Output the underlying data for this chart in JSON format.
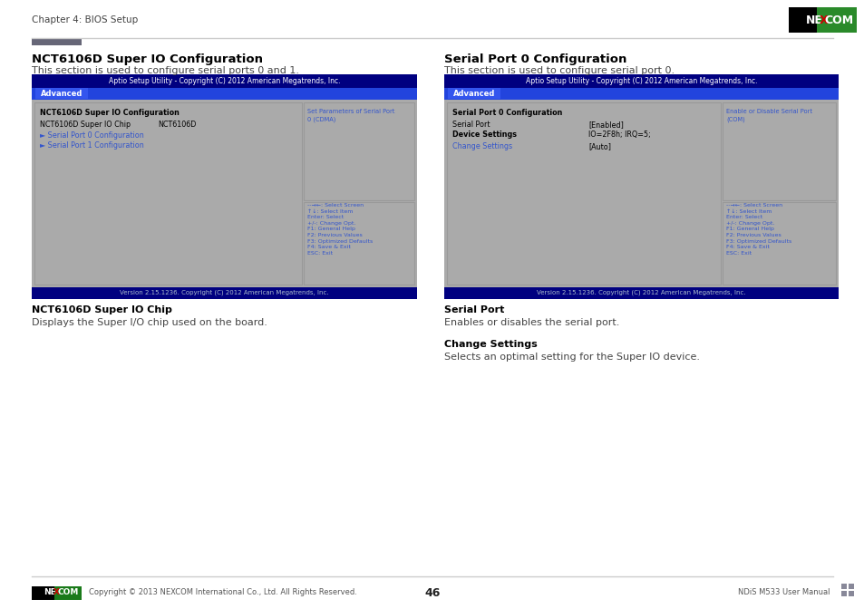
{
  "page_bg": "#ffffff",
  "header_text": "Chapter 4: BIOS Setup",
  "header_line_color": "#cccccc",
  "header_bar_color": "#5a5a5a",
  "left_section": {
    "title": "NCT6106D Super IO Configuration",
    "subtitle": "This section is used to configure serial ports 0 and 1.",
    "bios_title_bar": "Aptio Setup Utility - Copyright (C) 2012 American Megatrends, Inc.",
    "bios_tab": "Advanced",
    "bios_header_bg": "#000080",
    "bios_tab_bg": "#2244bb",
    "bios_body_bg": "#aaaaaa",
    "bios_main_label": "NCT6106D Super IO Configuration",
    "bios_chip_label": "NCT6106D Super IO Chip",
    "bios_chip_value": "NCT6106D",
    "bios_link1": "► Serial Port 0 Configuration",
    "bios_link2": "► Serial Port 1 Configuration",
    "bios_right_help": "Set Parameters of Serial Port\n0 (CDMA)",
    "bios_keys": "--→←: Select Screen\n↑↓: Select Item\nEnter: Select\n+/-: Change Opt.\nF1: General Help\nF2: Previous Values\nF3: Optimized Defaults\nF4: Save & Exit\nESC: Exit",
    "bios_footer": "Version 2.15.1236. Copyright (C) 2012 American Megatrends, Inc."
  },
  "right_section": {
    "title": "Serial Port 0 Configuration",
    "subtitle": "This section is used to configure serial port 0.",
    "bios_title_bar": "Aptio Setup Utility - Copyright (C) 2012 American Megatrends, Inc.",
    "bios_tab": "Advanced",
    "bios_header_bg": "#000080",
    "bios_tab_bg": "#2244bb",
    "bios_body_bg": "#aaaaaa",
    "bios_main_label": "Serial Port 0 Configuration",
    "bios_serial_port": "Serial Port",
    "bios_serial_port_val": "[Enabled]",
    "bios_device_label": "Device Settings",
    "bios_device_val": "IO=2F8h; IRQ=5;",
    "bios_change_label": "Change Settings",
    "bios_change_val": "[Auto]",
    "bios_right_help": "Enable or Disable Serial Port\n(COM)",
    "bios_keys": "--→←: Select Screen\n↑↓: Select Item\nEnter: Select\n+/-: Change Opt.\nF1: General Help\nF2: Previous Values\nF3: Optimized Defaults\nF4: Save & Exit\nESC: Exit",
    "bios_footer": "Version 2.15.1236. Copyright (C) 2012 American Megatrends, Inc."
  },
  "bottom_section": {
    "left_chip_title": "NCT6106D Super IO Chip",
    "left_chip_desc": "Displays the Super I/O chip used on the board.",
    "right_port_title": "Serial Port",
    "right_port_desc": "Enables or disables the serial port.",
    "right_change_title": "Change Settings",
    "right_change_desc": "Selects an optimal setting for the Super IO device."
  },
  "footer": {
    "page_num": "46",
    "left_text": "Copyright © 2013 NEXCOM International Co., Ltd. All Rights Reserved.",
    "right_text": "NDiS M533 User Manual"
  }
}
